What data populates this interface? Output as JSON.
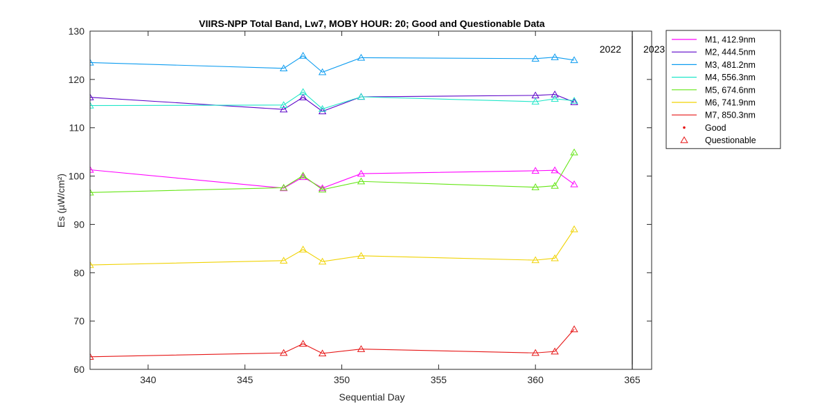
{
  "chart_data": {
    "type": "line",
    "title": "VIIRS-NPP Total Band,  Lw7, MOBY HOUR: 20;  Good and Questionable Data",
    "xlabel": "Sequential Day",
    "ylabel": "Es (µW/cm²)",
    "xlim": [
      337,
      366
    ],
    "ylim": [
      60,
      130
    ],
    "xticks": [
      340,
      345,
      350,
      355,
      360,
      365
    ],
    "yticks": [
      60,
      70,
      80,
      90,
      100,
      110,
      120,
      130
    ],
    "x": [
      337,
      347,
      348,
      349,
      351,
      360,
      361,
      362
    ],
    "year_divider": {
      "x": 365,
      "left_label": "2022",
      "right_label": "2023"
    },
    "grid": false,
    "legend_position": "outside-top-right",
    "series": [
      {
        "name": "M1, 412.9nm",
        "color": "#ff00ff",
        "values": [
          101.3,
          97.5,
          99.8,
          97.5,
          100.5,
          101.1,
          101.2,
          98.3
        ]
      },
      {
        "name": "M2, 444.5nm",
        "color": "#5a00c8",
        "values": [
          116.3,
          113.8,
          116.3,
          113.4,
          116.4,
          116.7,
          116.9,
          115.3
        ]
      },
      {
        "name": "M3, 481.2nm",
        "color": "#0a9bf0",
        "values": [
          123.5,
          122.3,
          124.9,
          121.5,
          124.5,
          124.3,
          124.6,
          124.0
        ]
      },
      {
        "name": "M4, 556.3nm",
        "color": "#1ee6c8",
        "values": [
          114.6,
          114.7,
          117.4,
          113.9,
          116.4,
          115.4,
          116.0,
          115.6
        ]
      },
      {
        "name": "M5, 674.6nm",
        "color": "#64e614",
        "values": [
          96.6,
          97.6,
          100.1,
          97.2,
          98.9,
          97.7,
          98.0,
          104.9
        ]
      },
      {
        "name": "M6, 741.9nm",
        "color": "#f0d200",
        "values": [
          81.6,
          82.5,
          84.8,
          82.3,
          83.5,
          82.6,
          83.0,
          89.0
        ]
      },
      {
        "name": "M7, 850.3nm",
        "color": "#e61414",
        "values": [
          62.6,
          63.4,
          65.3,
          63.3,
          64.2,
          63.4,
          63.7,
          68.3
        ]
      }
    ],
    "marker_legend": [
      {
        "name": "Good",
        "marker": "dot",
        "color": "#e61414"
      },
      {
        "name": "Questionable",
        "marker": "triangle",
        "color": "#e61414"
      }
    ]
  }
}
